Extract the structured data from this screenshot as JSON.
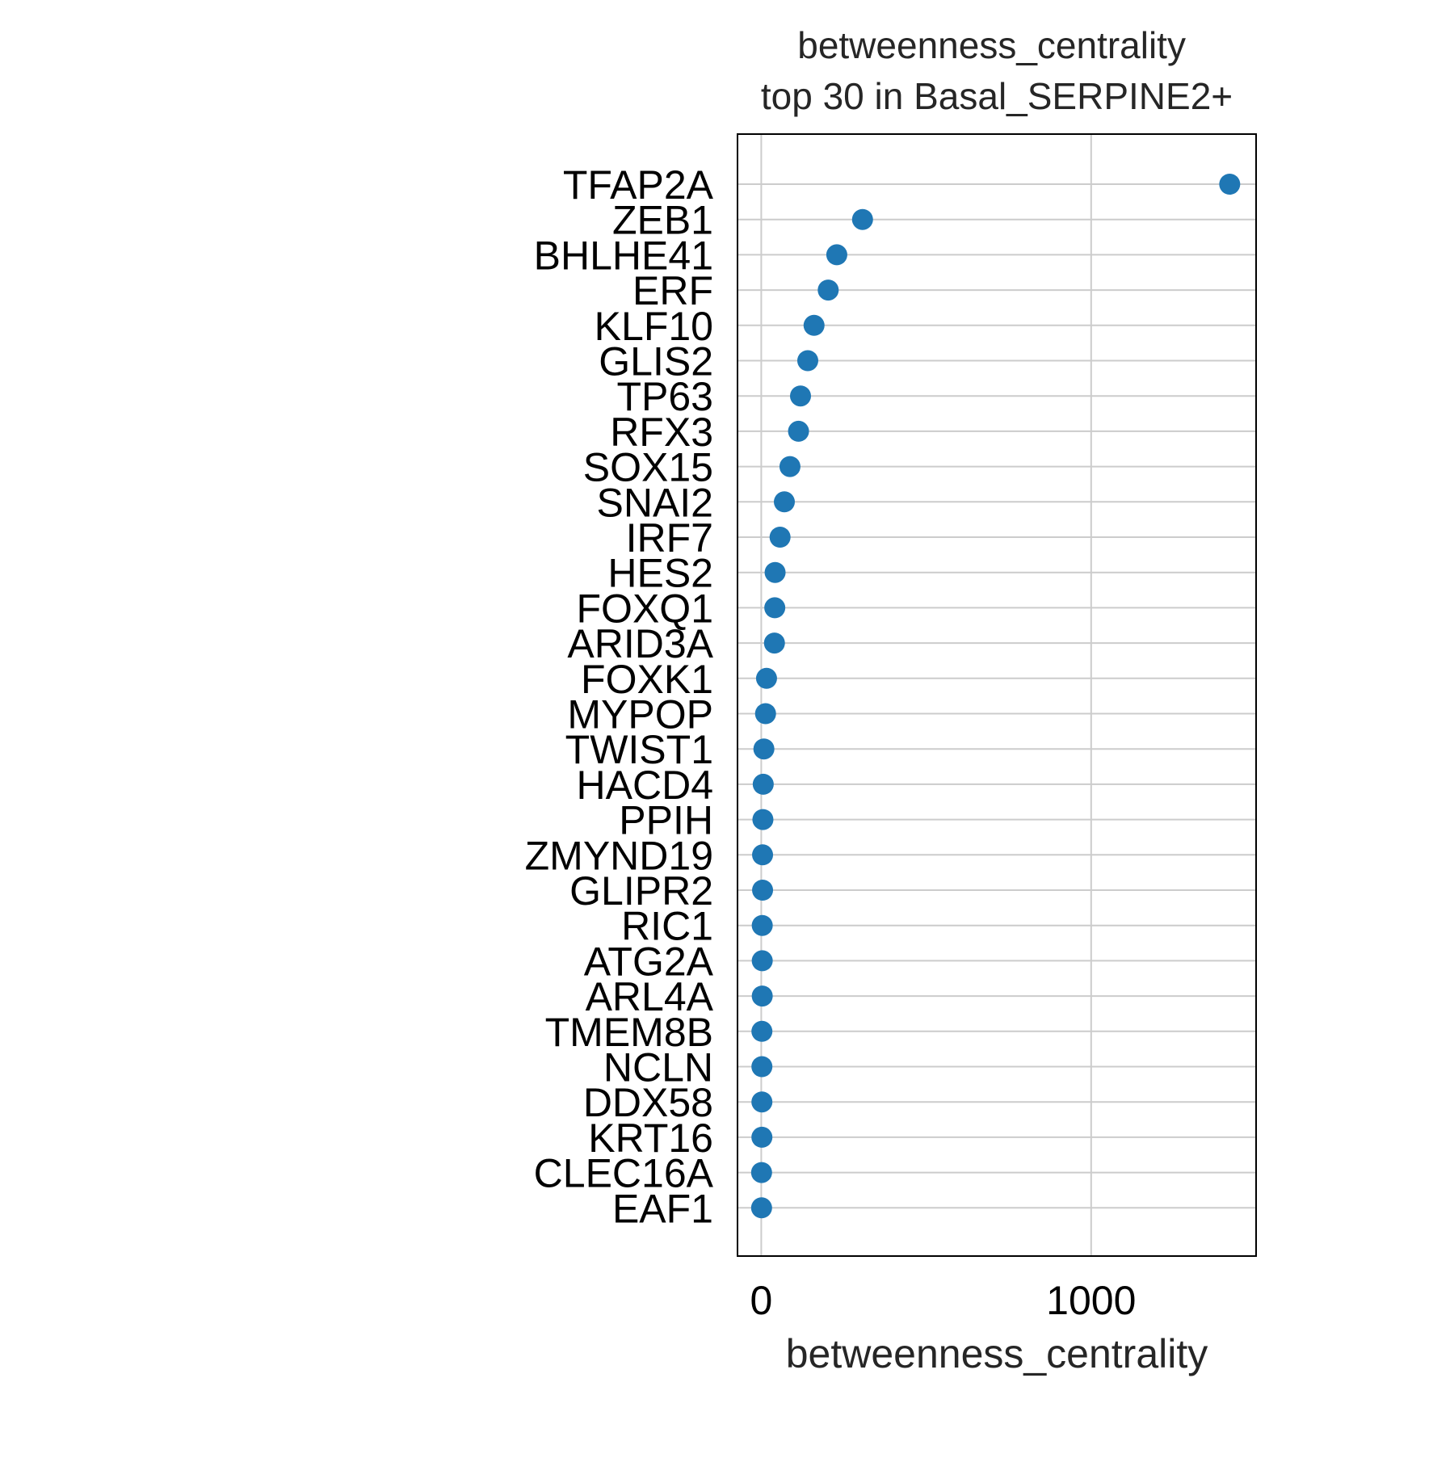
{
  "chart_data": {
    "type": "scatter",
    "title": "betweenness_centrality\ntop 30 in Basal_SERPINE2+",
    "title_lines": [
      "betweenness_centrality",
      "top 30 in Basal_SERPINE2+"
    ],
    "xlabel": "betweenness_centrality",
    "ylabel": "",
    "xlim": [
      -72,
      1500
    ],
    "xticks": [
      0,
      1000
    ],
    "xtick_labels": [
      "0",
      "1000"
    ],
    "grid": true,
    "legend": "none",
    "marker_color": "#1f77b4",
    "grid_color": "#cccccc",
    "categories": [
      "TFAP2A",
      "ZEB1",
      "BHLHE41",
      "ERF",
      "KLF10",
      "GLIS2",
      "TP63",
      "RFX3",
      "SOX15",
      "SNAI2",
      "IRF7",
      "HES2",
      "FOXQ1",
      "ARID3A",
      "FOXK1",
      "MYPOP",
      "TWIST1",
      "HACD4",
      "PPIH",
      "ZMYND19",
      "GLIPR2",
      "RIC1",
      "ATG2A",
      "ARL4A",
      "TMEM8B",
      "NCLN",
      "DDX58",
      "KRT16",
      "CLEC16A",
      "EAF1"
    ],
    "values": [
      1420,
      307,
      229,
      203,
      160,
      141,
      119,
      113,
      87,
      70,
      57,
      42,
      41,
      40,
      16,
      13,
      8,
      6,
      5,
      4,
      4,
      3,
      3,
      3,
      2,
      2,
      2,
      2,
      1,
      1
    ]
  }
}
